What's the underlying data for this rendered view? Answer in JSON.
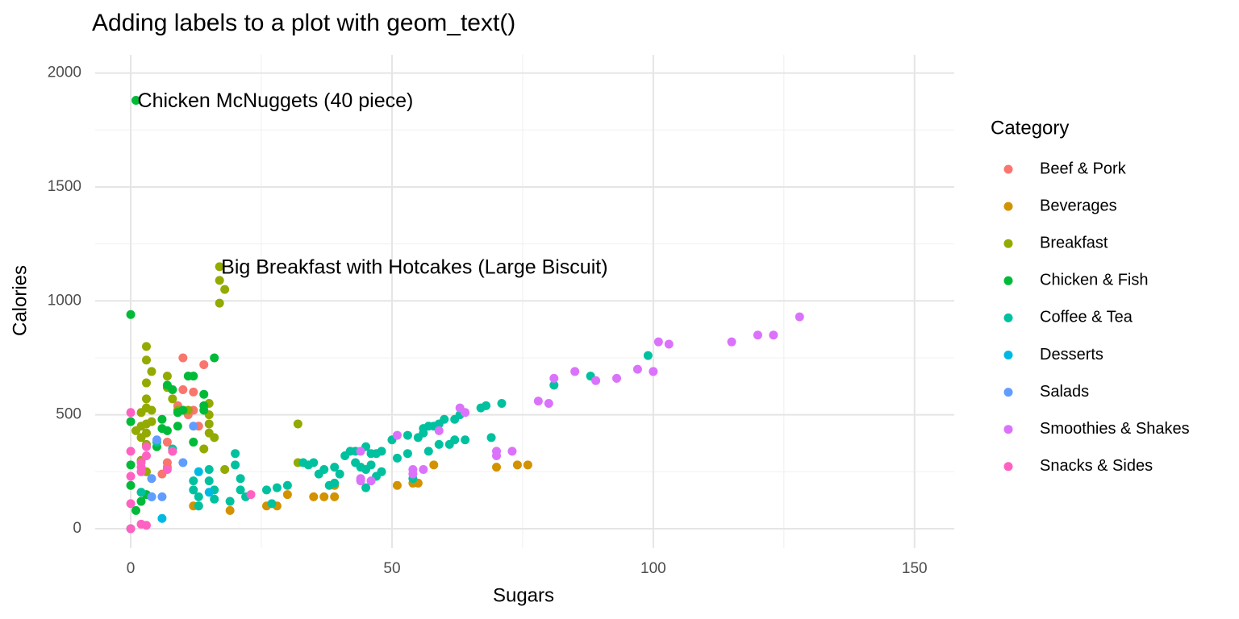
{
  "chart_data": {
    "type": "scatter",
    "title": "Adding labels to a plot with geom_text()",
    "x_label": "Sugars",
    "y_label": "Calories",
    "legend_title": "Category",
    "legend_position": "right",
    "grid": true,
    "xlim": [
      -6.8,
      157.6
    ],
    "ylim": [
      -85,
      2080
    ],
    "xticks": [
      0,
      50,
      100,
      150
    ],
    "yticks": [
      0,
      500,
      1000,
      1500,
      2000
    ],
    "x_minor_ticks": [
      25,
      75,
      125
    ],
    "y_minor_ticks": [
      250,
      750,
      1250,
      1750
    ],
    "annotations": [
      {
        "label": "Chicken McNuggets (40 piece)",
        "x": 1,
        "y": 1880
      },
      {
        "label": "Big Breakfast with Hotcakes (Large Biscuit)",
        "x": 17,
        "y": 1150
      }
    ],
    "series": [
      {
        "name": "Beef & Pork",
        "color": "#F8766D",
        "x": [
          10,
          14,
          11,
          12,
          10,
          9,
          7,
          7,
          6,
          7,
          13,
          8,
          12
        ],
        "values": [
          750,
          720,
          500,
          600,
          610,
          540,
          380,
          290,
          240,
          270,
          450,
          340,
          520
        ]
      },
      {
        "name": "Beverages",
        "color": "#D39200",
        "x": [
          12,
          13,
          19,
          26,
          28,
          30,
          35,
          37,
          39,
          39,
          51,
          54,
          55,
          58,
          70,
          74,
          76
        ],
        "values": [
          100,
          100,
          80,
          100,
          100,
          150,
          140,
          140,
          140,
          190,
          190,
          200,
          200,
          280,
          270,
          280,
          280
        ]
      },
      {
        "name": "Breakfast",
        "color": "#93AA00",
        "x": [
          17,
          17,
          18,
          17,
          3,
          3,
          4,
          7,
          3,
          7,
          2,
          3,
          3,
          4,
          8,
          4,
          2,
          3,
          2,
          3,
          3,
          2,
          3,
          15,
          15,
          15,
          15,
          16,
          14,
          9,
          11,
          32,
          32,
          18,
          1
        ],
        "values": [
          1150,
          1090,
          1050,
          990,
          800,
          740,
          690,
          670,
          640,
          620,
          510,
          570,
          530,
          520,
          570,
          470,
          450,
          460,
          400,
          370,
          420,
          300,
          250,
          550,
          500,
          460,
          420,
          400,
          350,
          520,
          520,
          460,
          290,
          260,
          430
        ]
      },
      {
        "name": "Chicken & Fish",
        "color": "#00BA38",
        "x": [
          1,
          0,
          16,
          11,
          12,
          14,
          7,
          8,
          9,
          10,
          6,
          6,
          7,
          5,
          9,
          14,
          14,
          12,
          0,
          0,
          0,
          1,
          2,
          3
        ],
        "values": [
          1880,
          940,
          750,
          670,
          670,
          590,
          630,
          610,
          510,
          520,
          480,
          440,
          430,
          360,
          450,
          540,
          520,
          380,
          470,
          280,
          190,
          80,
          120,
          150
        ]
      },
      {
        "name": "Coffee & Tea",
        "color": "#00C19F",
        "x": [
          0,
          2,
          5,
          8,
          12,
          12,
          13,
          13,
          15,
          15,
          16,
          16,
          19,
          20,
          20,
          21,
          21,
          22,
          26,
          27,
          28,
          30,
          33,
          34,
          35,
          36,
          37,
          38,
          39,
          39,
          40,
          41,
          42,
          43,
          43,
          44,
          45,
          45,
          46,
          46,
          47,
          48,
          48,
          50,
          51,
          53,
          53,
          55,
          56,
          56,
          57,
          57,
          58,
          59,
          59,
          60,
          61,
          62,
          62,
          63,
          64,
          67,
          68,
          69,
          71,
          81,
          88,
          99,
          54,
          45,
          47
        ],
        "values": [
          0,
          160,
          380,
          350,
          210,
          170,
          140,
          100,
          260,
          210,
          170,
          130,
          120,
          280,
          330,
          220,
          170,
          140,
          170,
          110,
          180,
          190,
          290,
          280,
          290,
          240,
          260,
          190,
          200,
          270,
          240,
          320,
          340,
          340,
          290,
          270,
          260,
          360,
          330,
          280,
          330,
          340,
          250,
          390,
          310,
          410,
          330,
          400,
          440,
          420,
          450,
          340,
          450,
          460,
          370,
          480,
          370,
          480,
          390,
          500,
          390,
          530,
          540,
          400,
          550,
          630,
          670,
          760,
          220,
          180,
          230
        ]
      },
      {
        "name": "Desserts",
        "color": "#00B9E3",
        "x": [
          6,
          13,
          15,
          4
        ],
        "values": [
          45,
          250,
          160,
          140
        ]
      },
      {
        "name": "Salads",
        "color": "#619CFF",
        "x": [
          4,
          4,
          6,
          10,
          12,
          5
        ],
        "values": [
          220,
          140,
          140,
          290,
          450,
          390
        ]
      },
      {
        "name": "Smoothies & Shakes",
        "color": "#DB72FB",
        "x": [
          44,
          44,
          46,
          51,
          54,
          54,
          56,
          59,
          63,
          64,
          70,
          70,
          73,
          78,
          80,
          81,
          85,
          89,
          93,
          97,
          100,
          101,
          103,
          115,
          120,
          123,
          128,
          44
        ],
        "values": [
          340,
          210,
          210,
          410,
          260,
          240,
          260,
          430,
          530,
          510,
          340,
          320,
          340,
          560,
          550,
          660,
          690,
          650,
          660,
          700,
          690,
          820,
          810,
          820,
          850,
          850,
          930,
          220
        ]
      },
      {
        "name": "Snacks & Sides",
        "color": "#FF61C3",
        "x": [
          0,
          0,
          0,
          0,
          0,
          2,
          3,
          2,
          2,
          3,
          3,
          2,
          7,
          8,
          23
        ],
        "values": [
          510,
          340,
          230,
          110,
          0,
          20,
          15,
          250,
          270,
          320,
          360,
          290,
          260,
          340,
          150
        ]
      }
    ]
  }
}
